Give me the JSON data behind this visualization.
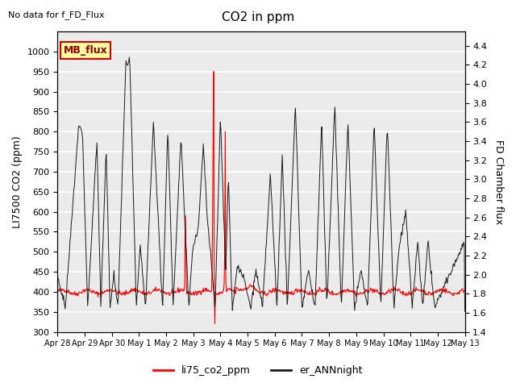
{
  "title": "CO2 in ppm",
  "top_left_text": "No data for f_FD_Flux",
  "box_label": "MB_flux",
  "ylabel_left": "LI7500 CO2 (ppm)",
  "ylabel_right": "FD Chamber flux",
  "ylim_left": [
    300,
    1050
  ],
  "ylim_right": [
    1.4,
    4.55
  ],
  "yticks_left": [
    300,
    350,
    400,
    450,
    500,
    550,
    600,
    650,
    700,
    750,
    800,
    850,
    900,
    950,
    1000
  ],
  "yticks_right": [
    1.4,
    1.6,
    1.8,
    2.0,
    2.2,
    2.4,
    2.6,
    2.8,
    3.0,
    3.2,
    3.4,
    3.6,
    3.8,
    4.0,
    4.2,
    4.4
  ],
  "xtick_labels": [
    "Apr 28",
    "Apr 29",
    "Apr 30",
    "May 1",
    "May 2",
    "May 3",
    "May 4",
    "May 5",
    "May 6",
    "May 7",
    "May 8",
    "May 9",
    "May 10",
    "May 11",
    "May 12",
    "May 13"
  ],
  "color_red": "#FF0000",
  "color_black": "#1A1A1A",
  "legend_labels": [
    "li75_co2_ppm",
    "er_ANNnight"
  ],
  "plot_bg_color": "#EBEBEB",
  "n_days": 15.5,
  "n_points": 744
}
